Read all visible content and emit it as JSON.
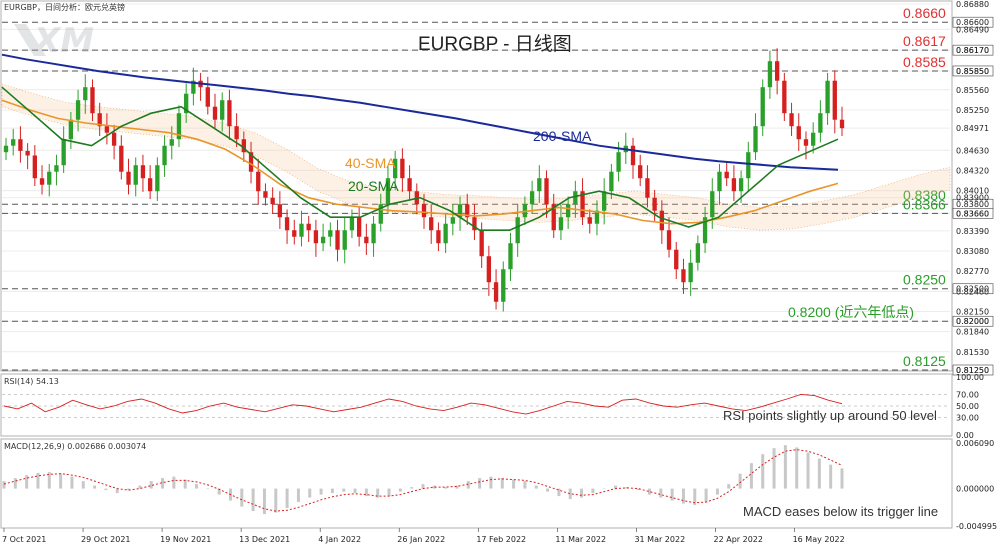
{
  "window": {
    "symbol_header": "EURGBP，日间分析：欧元兑英镑",
    "logo_text": "XM"
  },
  "chart_data": {
    "type": "line",
    "title": "EURGBP - 日线图",
    "price_axis": {
      "ylim": [
        0.8125,
        0.8688
      ],
      "ticks": [
        "0.86880",
        "0.86490",
        "0.86170",
        "0.85850",
        "0.85560",
        "0.85250",
        "0.84971",
        "0.84630",
        "0.84320",
        "0.84010",
        "0.83900",
        "0.83660",
        "0.83390",
        "0.83080",
        "0.82770",
        "0.82460",
        "0.82150",
        "0.82000",
        "0.81840",
        "0.81530",
        "0.81250"
      ]
    },
    "levels": [
      {
        "label": "0.8660",
        "value": 0.866,
        "color": "#e03030"
      },
      {
        "label": "0.8617",
        "value": 0.8617,
        "color": "#e03030"
      },
      {
        "label": "0.8585",
        "value": 0.8585,
        "color": "#e03030"
      },
      {
        "label": "0.8380",
        "value": 0.838,
        "color": "#2a9d2a"
      },
      {
        "label": "0.8366",
        "value": 0.8366,
        "color": "#2a9d2a"
      },
      {
        "label": "0.8250",
        "value": 0.825,
        "color": "#2a9d2a"
      },
      {
        "label": "0.8200 (近六年低点)",
        "value": 0.82,
        "color": "#2a9d2a"
      },
      {
        "label": "0.8125",
        "value": 0.8125,
        "color": "#2a9d2a"
      }
    ],
    "sma_labels": [
      {
        "label": "200-SMA",
        "color": "#1a2a9a"
      },
      {
        "label": "40-SMA",
        "color": "#e8962a"
      },
      {
        "label": "20-SMA",
        "color": "#1e7a1e"
      }
    ],
    "x_labels": [
      "7 Oct 2021",
      "29 Oct 2021",
      "19 Nov 2021",
      "13 Dec 2021",
      "4 Jan 2022",
      "26 Jan 2022",
      "17 Feb 2022",
      "11 Mar 2022",
      "31 Mar 2022",
      "22 Apr 2022",
      "16 May 2022"
    ],
    "closes": [
      0.847,
      0.848,
      0.8462,
      0.8455,
      0.842,
      0.841,
      0.843,
      0.844,
      0.848,
      0.851,
      0.854,
      0.856,
      0.852,
      0.85,
      0.849,
      0.847,
      0.843,
      0.841,
      0.844,
      0.842,
      0.84,
      0.844,
      0.847,
      0.848,
      0.852,
      0.855,
      0.857,
      0.856,
      0.853,
      0.851,
      0.854,
      0.85,
      0.848,
      0.846,
      0.843,
      0.84,
      0.839,
      0.838,
      0.836,
      0.834,
      0.833,
      0.835,
      0.834,
      0.832,
      0.833,
      0.834,
      0.831,
      0.834,
      0.836,
      0.833,
      0.832,
      0.835,
      0.838,
      0.842,
      0.845,
      0.842,
      0.84,
      0.838,
      0.836,
      0.834,
      0.832,
      0.835,
      0.836,
      0.838,
      0.836,
      0.834,
      0.83,
      0.826,
      0.823,
      0.828,
      0.832,
      0.836,
      0.838,
      0.84,
      0.842,
      0.838,
      0.834,
      0.836,
      0.838,
      0.84,
      0.836,
      0.835,
      0.837,
      0.84,
      0.843,
      0.846,
      0.847,
      0.844,
      0.842,
      0.839,
      0.837,
      0.834,
      0.831,
      0.828,
      0.826,
      0.829,
      0.832,
      0.836,
      0.84,
      0.843,
      0.842,
      0.84,
      0.842,
      0.846,
      0.85,
      0.856,
      0.86,
      0.857,
      0.852,
      0.85,
      0.848,
      0.847,
      0.849,
      0.852,
      0.857,
      0.851,
      0.8497
    ],
    "sma200": [
      0.861,
      0.8603,
      0.8597,
      0.8591,
      0.8585,
      0.858,
      0.8575,
      0.8571,
      0.8567,
      0.8563,
      0.8559,
      0.8555,
      0.855,
      0.8546,
      0.8541,
      0.8536,
      0.853,
      0.8524,
      0.8518,
      0.8512,
      0.8505,
      0.8498,
      0.8491,
      0.8484,
      0.8477,
      0.847,
      0.8465,
      0.846,
      0.8455,
      0.845,
      0.8446,
      0.8443,
      0.844,
      0.8437,
      0.8435,
      0.8433
    ],
    "sma40": [
      0.854,
      0.8525,
      0.8512,
      0.8505,
      0.85,
      0.8495,
      0.849,
      0.848,
      0.8465,
      0.844,
      0.841,
      0.839,
      0.838,
      0.8375,
      0.837,
      0.8368,
      0.8365,
      0.8362,
      0.8365,
      0.837,
      0.8375,
      0.837,
      0.8365,
      0.8355,
      0.835,
      0.8352,
      0.836,
      0.837,
      0.8385,
      0.84,
      0.8412
    ],
    "sma20": [
      0.856,
      0.852,
      0.848,
      0.847,
      0.85,
      0.852,
      0.853,
      0.85,
      0.847,
      0.843,
      0.839,
      0.836,
      0.836,
      0.838,
      0.839,
      0.837,
      0.834,
      0.834,
      0.836,
      0.839,
      0.84,
      0.839,
      0.836,
      0.8345,
      0.836,
      0.84,
      0.844,
      0.846,
      0.848
    ],
    "rsi": {
      "label": "RSI(14) 54.13",
      "ticks": [
        "100.00",
        "70.00",
        "50.00",
        "30.00",
        "0.00"
      ],
      "values": [
        50,
        45,
        55,
        40,
        48,
        60,
        52,
        45,
        50,
        58,
        62,
        55,
        45,
        38,
        42,
        50,
        55,
        48,
        44,
        40,
        46,
        52,
        50,
        45,
        40,
        44,
        48,
        55,
        62,
        58,
        50,
        45,
        42,
        48,
        55,
        52,
        46,
        40,
        36,
        42,
        50,
        58,
        55,
        50,
        48,
        60,
        62,
        55,
        50,
        48,
        52,
        55,
        50,
        45,
        42,
        48,
        55,
        62,
        70,
        68,
        60,
        54
      ]
    },
    "macd": {
      "label": "MACD(12,26,9) 0.002686 0.003074",
      "ticks": [
        "0.006090",
        "0.000000",
        "-0.004995"
      ],
      "ylim": [
        -0.004995,
        0.00609
      ],
      "histogram": [
        0.001,
        0.0014,
        0.0018,
        0.0021,
        0.0022,
        0.002,
        0.0016,
        0.001,
        0.0004,
        -0.0002,
        -0.0006,
        -0.0002,
        0.0004,
        0.001,
        0.0014,
        0.0016,
        0.0012,
        0.0006,
        0.0,
        -0.0008,
        -0.0016,
        -0.0024,
        -0.003,
        -0.0034,
        -0.0032,
        -0.0026,
        -0.0018,
        -0.0012,
        -0.0008,
        -0.0006,
        -0.0004,
        -0.0006,
        -0.001,
        -0.0012,
        -0.001,
        -0.0004,
        0.0002,
        0.0006,
        0.0004,
        0.0002,
        0.0004,
        0.001,
        0.0014,
        0.0016,
        0.0014,
        0.0012,
        0.001,
        0.0004,
        -0.0004,
        -0.001,
        -0.0014,
        -0.0012,
        -0.0006,
        0.0,
        0.0004,
        0.0002,
        -0.0002,
        -0.0008,
        -0.0012,
        -0.0016,
        -0.002,
        -0.0022,
        -0.0018,
        -0.0008,
        0.0006,
        0.002,
        0.0034,
        0.0046,
        0.0054,
        0.0058,
        0.0055,
        0.0048,
        0.004,
        0.0032,
        0.0027
      ],
      "signal": [
        0.0006,
        0.001,
        0.0014,
        0.0017,
        0.0019,
        0.002,
        0.0018,
        0.0015,
        0.001,
        0.0005,
        0.0,
        -0.0002,
        0.0,
        0.0004,
        0.0008,
        0.0011,
        0.0011,
        0.0009,
        0.0005,
        -0.0001,
        -0.0008,
        -0.0015,
        -0.0021,
        -0.0027,
        -0.003,
        -0.0029,
        -0.0025,
        -0.002,
        -0.0015,
        -0.0011,
        -0.0008,
        -0.0007,
        -0.0008,
        -0.001,
        -0.001,
        -0.0008,
        -0.0004,
        0.0,
        0.0002,
        0.0002,
        0.0003,
        0.0006,
        0.0009,
        0.0012,
        0.0013,
        0.0012,
        0.0011,
        0.0008,
        0.0003,
        -0.0002,
        -0.0007,
        -0.0009,
        -0.0008,
        -0.0004,
        0.0,
        0.0001,
        0.0,
        -0.0004,
        -0.0008,
        -0.0012,
        -0.0016,
        -0.0019,
        -0.0018,
        -0.0013,
        -0.0004,
        0.0008,
        0.002,
        0.0032,
        0.0042,
        0.005,
        0.0052,
        0.005,
        0.0045,
        0.0038,
        0.0031
      ]
    },
    "annotations": {
      "rsi_note": "RSI points slightly up around 50 level",
      "macd_note": "MACD eases below its trigger line"
    },
    "grid": true,
    "legend_placement": "none"
  }
}
